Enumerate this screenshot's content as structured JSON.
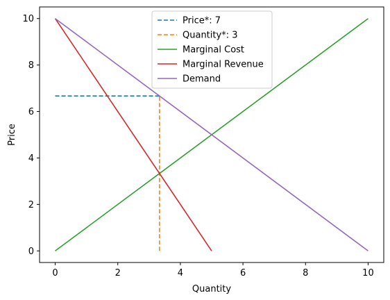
{
  "chart_data": {
    "type": "line",
    "title": "",
    "xlabel": "Quantity",
    "ylabel": "Price",
    "xlim": [
      -0.5,
      10.5
    ],
    "ylim": [
      -0.5,
      10.5
    ],
    "xticks": [
      0,
      2,
      4,
      6,
      8,
      10
    ],
    "yticks": [
      0,
      2,
      4,
      6,
      8,
      10
    ],
    "grid": false,
    "legend_position": "top-center",
    "series": [
      {
        "name": "Price*: 7",
        "style": "dashed",
        "color": "#1f77b4",
        "x": [
          0,
          3.333
        ],
        "y": [
          6.667,
          6.667
        ]
      },
      {
        "name": "Quantity*: 3",
        "style": "dashed",
        "color": "#ff7f0e",
        "x": [
          3.333,
          3.333
        ],
        "y": [
          0,
          6.667
        ]
      },
      {
        "name": "Marginal Cost",
        "style": "solid",
        "color": "#2ca02c",
        "x": [
          0,
          10
        ],
        "y": [
          0,
          10
        ]
      },
      {
        "name": "Marginal Revenue",
        "style": "solid",
        "color": "#d62728",
        "x": [
          0,
          5
        ],
        "y": [
          10,
          0
        ]
      },
      {
        "name": "Demand",
        "style": "solid",
        "color": "#9467bd",
        "x": [
          0,
          10
        ],
        "y": [
          10,
          0
        ]
      }
    ]
  }
}
